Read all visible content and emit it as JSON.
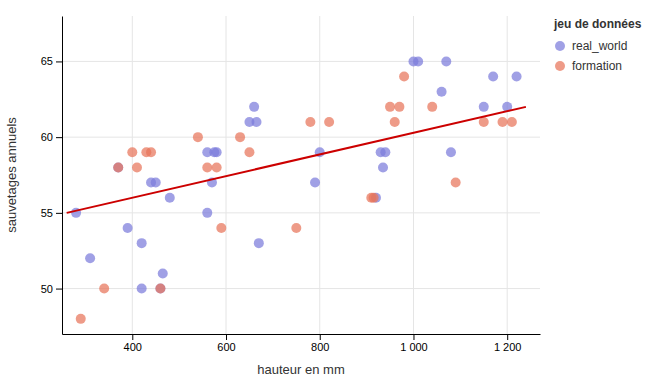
{
  "chart_data": {
    "type": "scatter",
    "x_label": "hauteur en mm",
    "y_label": "sauvetages annuels",
    "legend_title": "jeu de données",
    "legend": "upper right",
    "grid": true,
    "xlim": [
      250,
      1270
    ],
    "ylim": [
      47,
      68
    ],
    "xticks": [
      400,
      600,
      800,
      {
        "value": 1000,
        "label": "1 000"
      },
      {
        "value": 1200,
        "label": "1 200"
      }
    ],
    "yticks": [
      50,
      55,
      60,
      65
    ],
    "series": [
      {
        "name": "real_world",
        "type": "scatter",
        "marker": "circle",
        "color": "#7b7bdb",
        "x": [
          280,
          310,
          370,
          390,
          420,
          420,
          440,
          450,
          460,
          465,
          480,
          560,
          560,
          570,
          575,
          580,
          650,
          660,
          665,
          670,
          790,
          800,
          920,
          930,
          935,
          940,
          1000,
          1010,
          1060,
          1070,
          1080,
          1150,
          1170,
          1200,
          1220
        ],
        "values": [
          55,
          52,
          58,
          54,
          50,
          53,
          57,
          57,
          50,
          51,
          56,
          59,
          55,
          57,
          59,
          59,
          61,
          62,
          61,
          53,
          57,
          59,
          56,
          59,
          58,
          59,
          65,
          65,
          63,
          65,
          59,
          62,
          64,
          62,
          64
        ]
      },
      {
        "name": "formation",
        "type": "scatter",
        "marker": "circle",
        "color": "#e8755a",
        "x": [
          290,
          340,
          370,
          400,
          410,
          430,
          440,
          460,
          540,
          560,
          580,
          590,
          630,
          650,
          750,
          780,
          820,
          910,
          915,
          950,
          960,
          970,
          980,
          1040,
          1090,
          1150,
          1190,
          1210
        ],
        "values": [
          48,
          50,
          58,
          59,
          58,
          59,
          59,
          50,
          60,
          58,
          58,
          54,
          60,
          59,
          54,
          61,
          61,
          56,
          56,
          62,
          61,
          62,
          64,
          62,
          57,
          61,
          61,
          61
        ]
      },
      {
        "type": "line",
        "line_style": "solid",
        "color": "#cc0000",
        "x": [
          260,
          1240
        ],
        "values": [
          55.0,
          62.0
        ]
      }
    ]
  }
}
